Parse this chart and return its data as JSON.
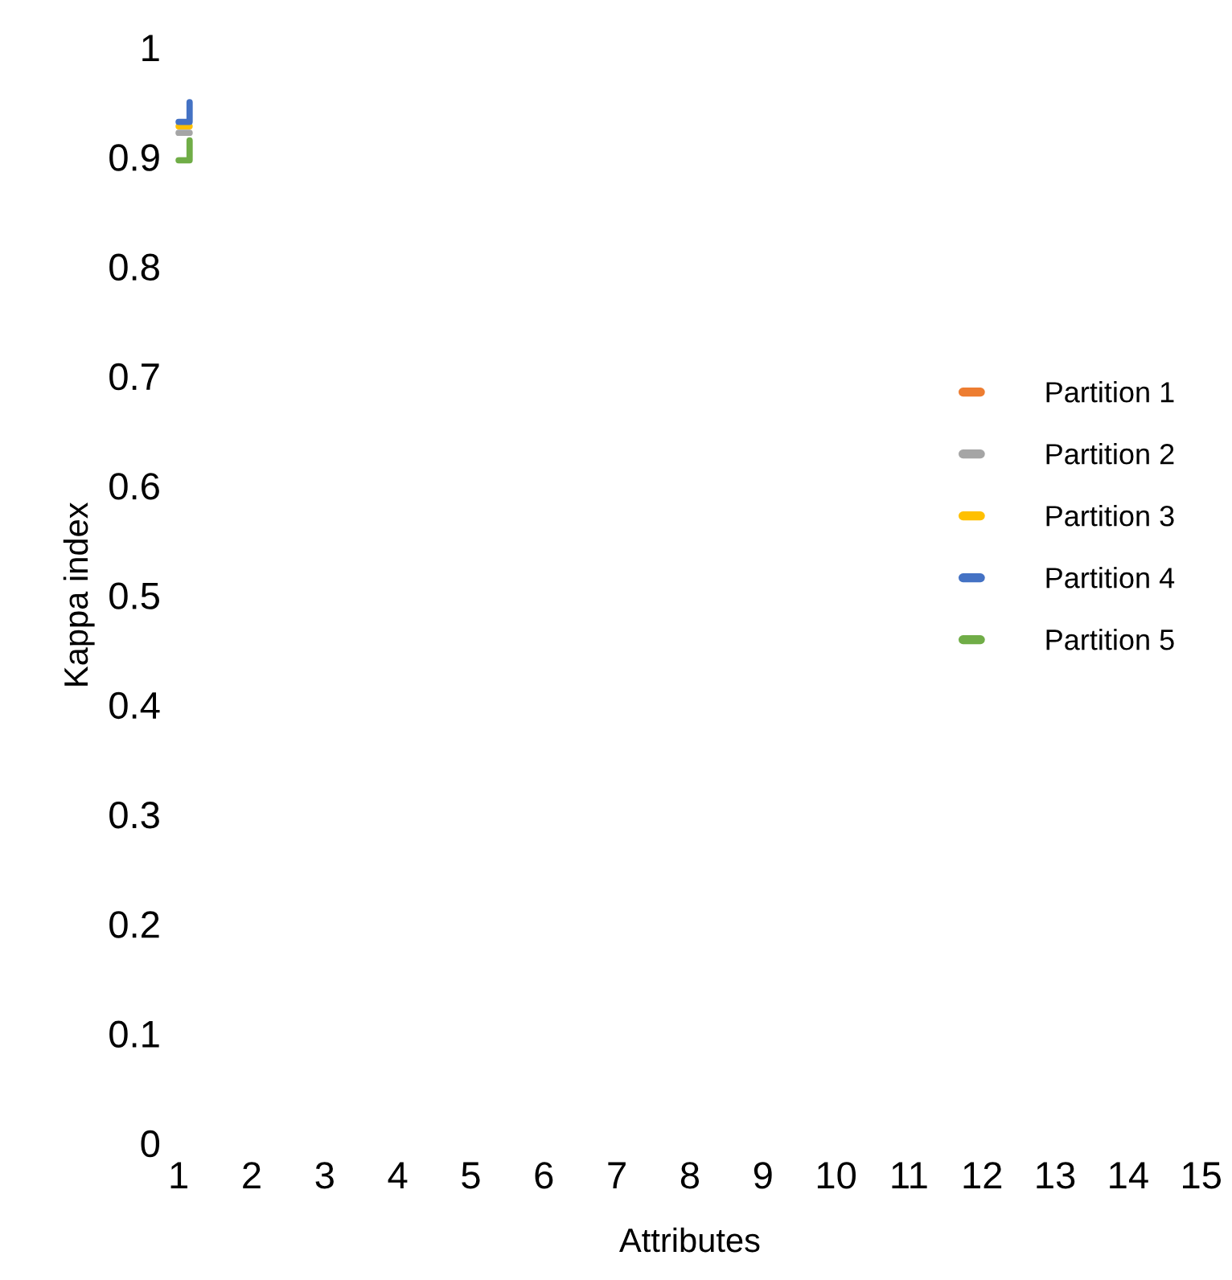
{
  "chart_data": {
    "type": "step",
    "x": [
      1.0,
      1.15
    ],
    "xlabel": "Attributes",
    "ylabel": "Kappa index",
    "xlim": [
      1,
      15
    ],
    "xticks": [
      1,
      2,
      3,
      4,
      5,
      6,
      7,
      8,
      9,
      10,
      11,
      12,
      13,
      14,
      15
    ],
    "ylim": [
      0,
      1
    ],
    "yticks": [
      0,
      0.1,
      0.2,
      0.3,
      0.4,
      0.5,
      0.6,
      0.7,
      0.8,
      0.9,
      1
    ],
    "grid": false,
    "legend": "right",
    "marker": "none",
    "line_style": "solid",
    "series": [
      {
        "name": "Partition 1",
        "color": "#ed7d31",
        "values": [
          null,
          null
        ]
      },
      {
        "name": "Partition 2",
        "color": "#a5a5a5",
        "values": [
          0.922,
          0.922
        ]
      },
      {
        "name": "Partition 3",
        "color": "#ffc000",
        "values": [
          0.928,
          0.928
        ]
      },
      {
        "name": "Partition 4",
        "color": "#4472c4",
        "values": [
          0.932,
          0.95
        ]
      },
      {
        "name": "Partition 5",
        "color": "#70ad47",
        "values": [
          0.897,
          0.915
        ]
      }
    ]
  }
}
